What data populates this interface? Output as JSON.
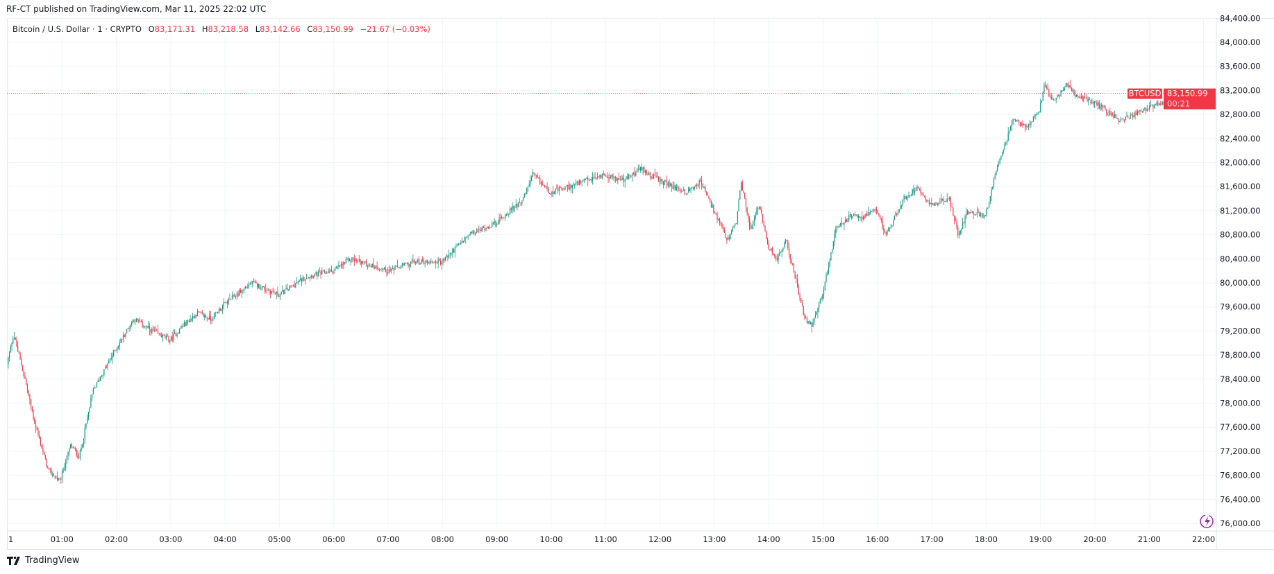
{
  "header": {
    "published": "RF-CT published on TradingView.com, Mar 11, 2025 22:02 UTC"
  },
  "legend": {
    "symbol": "Bitcoin / U.S. Dollar · 1 · CRYPTO",
    "o_label": "O",
    "o": "83,171.31",
    "h_label": "H",
    "h": "83,218.58",
    "l_label": "L",
    "l": "83,142.66",
    "c_label": "C",
    "c": "83,150.99",
    "change": "−21.67 (−0.03%)"
  },
  "price_tag": {
    "symbol": "BTCUSD",
    "price": "83,150.99",
    "countdown": "00:21"
  },
  "footer": {
    "brand": "TradingView"
  },
  "colors": {
    "up": "#089981",
    "down": "#f23645",
    "grid": "#f0f3fa"
  },
  "chart_data": {
    "type": "candlestick",
    "title": "Bitcoin / U.S. Dollar · 1 · CRYPTO",
    "ylim": [
      76000,
      84400
    ],
    "y_ticks": [
      "76,000.00",
      "76,400.00",
      "76,800.00",
      "77,200.00",
      "77,600.00",
      "78,000.00",
      "78,400.00",
      "78,800.00",
      "79,200.00",
      "79,600.00",
      "80,000.00",
      "80,400.00",
      "80,800.00",
      "81,200.00",
      "81,600.00",
      "82,000.00",
      "82,400.00",
      "82,800.00",
      "83,200.00",
      "83,600.00",
      "84,000.00",
      "84,400.00"
    ],
    "x_ticks": [
      "1",
      "01:00",
      "02:00",
      "03:00",
      "04:00",
      "05:00",
      "06:00",
      "07:00",
      "08:00",
      "09:00",
      "10:00",
      "11:00",
      "12:00",
      "13:00",
      "14:00",
      "15:00",
      "16:00",
      "17:00",
      "18:00",
      "19:00",
      "20:00",
      "21:00",
      "22:00"
    ],
    "xlim_hours": [
      0,
      22.03
    ],
    "last_price": 83150.99,
    "path_keypoints": [
      [
        0,
        78650
      ],
      [
        0.12,
        79150
      ],
      [
        0.33,
        78400
      ],
      [
        0.5,
        77700
      ],
      [
        0.75,
        76900
      ],
      [
        0.97,
        76700
      ],
      [
        1.17,
        77300
      ],
      [
        1.33,
        77100
      ],
      [
        1.58,
        78200
      ],
      [
        2,
        78900
      ],
      [
        2.33,
        79400
      ],
      [
        2.67,
        79200
      ],
      [
        3,
        79050
      ],
      [
        3.25,
        79300
      ],
      [
        3.5,
        79500
      ],
      [
        3.75,
        79400
      ],
      [
        4,
        79650
      ],
      [
        4.5,
        80000
      ],
      [
        5,
        79800
      ],
      [
        5.5,
        80100
      ],
      [
        6,
        80200
      ],
      [
        6.33,
        80400
      ],
      [
        7,
        80200
      ],
      [
        7.5,
        80350
      ],
      [
        8,
        80350
      ],
      [
        8.5,
        80800
      ],
      [
        9,
        81000
      ],
      [
        9.5,
        81400
      ],
      [
        9.67,
        81800
      ],
      [
        10,
        81500
      ],
      [
        10.5,
        81650
      ],
      [
        11,
        81800
      ],
      [
        11.33,
        81700
      ],
      [
        11.67,
        81900
      ],
      [
        12,
        81700
      ],
      [
        12.5,
        81500
      ],
      [
        12.75,
        81700
      ],
      [
        13,
        81200
      ],
      [
        13.25,
        80700
      ],
      [
        13.42,
        81000
      ],
      [
        13.5,
        81700
      ],
      [
        13.67,
        80900
      ],
      [
        13.83,
        81300
      ],
      [
        14,
        80600
      ],
      [
        14.17,
        80400
      ],
      [
        14.33,
        80700
      ],
      [
        14.5,
        80100
      ],
      [
        14.67,
        79400
      ],
      [
        14.8,
        79300
      ],
      [
        15,
        79800
      ],
      [
        15.25,
        80900
      ],
      [
        15.5,
        81100
      ],
      [
        15.75,
        81100
      ],
      [
        16,
        81200
      ],
      [
        16.17,
        80800
      ],
      [
        16.5,
        81400
      ],
      [
        16.75,
        81600
      ],
      [
        17,
        81300
      ],
      [
        17.33,
        81400
      ],
      [
        17.5,
        80800
      ],
      [
        17.67,
        81200
      ],
      [
        18,
        81100
      ],
      [
        18.17,
        81800
      ],
      [
        18.33,
        82200
      ],
      [
        18.5,
        82700
      ],
      [
        18.75,
        82600
      ],
      [
        19,
        82900
      ],
      [
        19.08,
        83300
      ],
      [
        19.25,
        83000
      ],
      [
        19.5,
        83300
      ],
      [
        19.67,
        83100
      ],
      [
        20,
        83000
      ],
      [
        20.33,
        82800
      ],
      [
        20.5,
        82700
      ],
      [
        20.75,
        82800
      ],
      [
        21,
        82900
      ],
      [
        21.25,
        83000
      ],
      [
        21.5,
        83100
      ],
      [
        22.03,
        83150
      ]
    ]
  }
}
